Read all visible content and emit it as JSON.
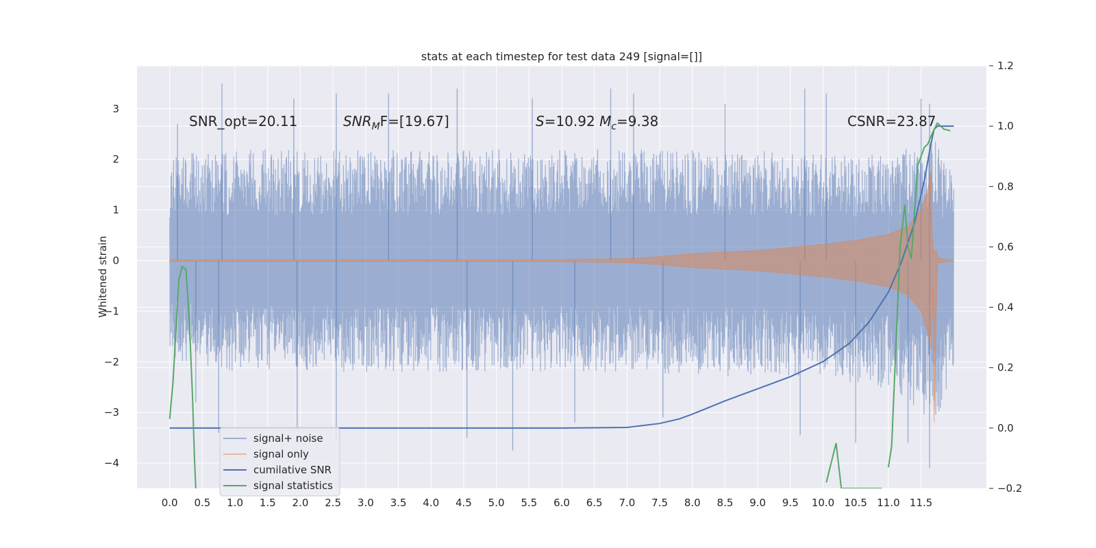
{
  "chart_data": {
    "type": "line",
    "title": "stats at each timestep for test data 249 [signal=[]]",
    "ylabel": "Whitened strain",
    "xlabel": "",
    "xlim": [
      -0.5,
      12.5
    ],
    "ylim": [
      -4.5,
      3.85
    ],
    "y2lim": [
      -0.2,
      1.2
    ],
    "grid": true,
    "legend_position": "lower-left",
    "x_ticks": [
      "0.0",
      "0.5",
      "1.0",
      "1.5",
      "2.0",
      "2.5",
      "3.0",
      "3.5",
      "4.0",
      "4.5",
      "5.0",
      "5.5",
      "6.0",
      "6.5",
      "7.0",
      "7.5",
      "8.0",
      "8.5",
      "9.0",
      "9.5",
      "10.0",
      "10.5",
      "11.0",
      "11.5"
    ],
    "y_ticks": [
      "−4",
      "−3",
      "−2",
      "−1",
      "0",
      "1",
      "2",
      "3"
    ],
    "y2_ticks": [
      "−0.2",
      "0.0",
      "0.2",
      "0.4",
      "0.6",
      "0.8",
      "1.0",
      "1.2"
    ],
    "annotations": {
      "snr_opt": "SNR_opt=20.11",
      "snr_mf_base": "SNR",
      "snr_mf_sub": "M",
      "snr_mf_rest": "F=[19.67]",
      "s_label": "S",
      "s_value": "=10.92 ",
      "mc_label": "M",
      "mc_sub": "c",
      "mc_value": "=9.38",
      "csnr": "CSNR=23.87"
    },
    "series": [
      {
        "name": "signal+ noise",
        "axis": "left",
        "color": "#4c72b0",
        "x_range": [
          0,
          12
        ],
        "envelope_positive": [
          [
            0,
            1.9
          ],
          [
            1,
            2.0
          ],
          [
            3,
            2.0
          ],
          [
            5,
            2.0
          ],
          [
            7,
            2.0
          ],
          [
            9,
            2.0
          ],
          [
            10,
            1.9
          ],
          [
            11,
            1.9
          ],
          [
            11.7,
            2.2
          ],
          [
            12,
            1.5
          ]
        ],
        "envelope_negative": [
          [
            0,
            -1.8
          ],
          [
            1,
            -2.0
          ],
          [
            3,
            -2.0
          ],
          [
            5,
            -2.0
          ],
          [
            7,
            -2.0
          ],
          [
            9,
            -2.1
          ],
          [
            10,
            -2.1
          ],
          [
            11,
            -2.3
          ],
          [
            11.7,
            -2.9
          ],
          [
            12,
            -2.2
          ]
        ],
        "peaks": [
          [
            0.12,
            2.7
          ],
          [
            0.8,
            3.5
          ],
          [
            1.9,
            3.2
          ],
          [
            2.55,
            3.3
          ],
          [
            3.35,
            3.3
          ],
          [
            4.4,
            3.4
          ],
          [
            5.55,
            3.2
          ],
          [
            6.75,
            3.4
          ],
          [
            7.1,
            3.3
          ],
          [
            8.5,
            3.1
          ],
          [
            9.72,
            3.4
          ],
          [
            10.05,
            3.3
          ],
          [
            11.5,
            3.2
          ],
          [
            11.63,
            3.1
          ]
        ],
        "troughs": [
          [
            0.4,
            -2.8
          ],
          [
            0.75,
            -3.4
          ],
          [
            1.95,
            -3.3
          ],
          [
            2.55,
            -3.55
          ],
          [
            4.55,
            -3.5
          ],
          [
            5.25,
            -3.75
          ],
          [
            6.2,
            -3.2
          ],
          [
            7.55,
            -3.1
          ],
          [
            9.65,
            -3.45
          ],
          [
            10.5,
            -3.6
          ],
          [
            11.3,
            -3.6
          ],
          [
            11.63,
            -4.1
          ]
        ]
      },
      {
        "name": "signal only",
        "axis": "left",
        "color": "#dd8452",
        "amplitude": [
          [
            0,
            0.015
          ],
          [
            6,
            0.02
          ],
          [
            7,
            0.04
          ],
          [
            7.5,
            0.08
          ],
          [
            8,
            0.14
          ],
          [
            9,
            0.2
          ],
          [
            10,
            0.32
          ],
          [
            10.5,
            0.4
          ],
          [
            11,
            0.52
          ],
          [
            11.3,
            0.68
          ],
          [
            11.5,
            1.0
          ],
          [
            11.6,
            1.4
          ],
          [
            11.66,
            1.8
          ],
          [
            11.7,
            -3.2
          ],
          [
            11.75,
            0.05
          ],
          [
            12,
            0.0
          ]
        ]
      },
      {
        "name": "cumilative SNR",
        "axis": "right",
        "color": "#4c72b0",
        "points": [
          [
            0,
            0.0
          ],
          [
            6,
            0.0
          ],
          [
            7,
            0.002
          ],
          [
            7.5,
            0.015
          ],
          [
            7.8,
            0.03
          ],
          [
            8,
            0.046
          ],
          [
            8.5,
            0.09
          ],
          [
            9,
            0.13
          ],
          [
            9.5,
            0.17
          ],
          [
            10,
            0.22
          ],
          [
            10.4,
            0.28
          ],
          [
            10.7,
            0.35
          ],
          [
            11,
            0.45
          ],
          [
            11.2,
            0.55
          ],
          [
            11.4,
            0.68
          ],
          [
            11.55,
            0.82
          ],
          [
            11.65,
            0.94
          ],
          [
            11.7,
            0.99
          ],
          [
            11.75,
            1.0
          ],
          [
            12,
            1.0
          ]
        ]
      },
      {
        "name": "signal statistics",
        "axis": "right",
        "color": "#55a868",
        "points": [
          [
            0,
            0.03
          ],
          [
            0.05,
            0.15
          ],
          [
            0.1,
            0.34
          ],
          [
            0.14,
            0.49
          ],
          [
            0.19,
            0.535
          ],
          [
            0.25,
            0.525
          ],
          [
            0.3,
            0.36
          ],
          [
            0.35,
            0.1
          ],
          [
            0.38,
            -0.1
          ],
          [
            0.4,
            -0.2
          ],
          [
            10.35,
            -0.2
          ],
          [
            10.1,
            -0.2
          ],
          [
            10.05,
            -0.18
          ],
          [
            10.2,
            -0.05
          ],
          [
            10.28,
            -0.2
          ],
          [
            10.9,
            -0.2
          ],
          [
            11.0,
            -0.13
          ],
          [
            11.05,
            -0.06
          ],
          [
            11.12,
            0.3
          ],
          [
            11.18,
            0.6
          ],
          [
            11.25,
            0.74
          ],
          [
            11.3,
            0.6
          ],
          [
            11.35,
            0.56
          ],
          [
            11.45,
            0.87
          ],
          [
            11.55,
            0.93
          ],
          [
            11.6,
            0.94
          ],
          [
            11.68,
            0.98
          ],
          [
            11.75,
            1.01
          ],
          [
            11.85,
            0.99
          ],
          [
            11.95,
            0.985
          ]
        ]
      }
    ]
  }
}
